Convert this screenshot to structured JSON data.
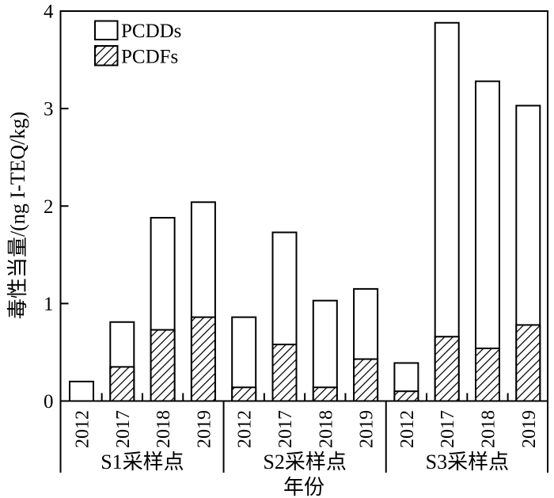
{
  "figure": {
    "background": "#ffffff",
    "ink_color": "#000000"
  },
  "chart_data": {
    "type": "bar",
    "stacked": true,
    "title": "",
    "xlabel": "年份",
    "ylabel": "毒性当量/(ng I-TEQ/kg)",
    "ylim": [
      0,
      4
    ],
    "yticks": [
      0,
      1,
      2,
      3,
      4
    ],
    "ytick_labels": [
      "0",
      "1",
      "2",
      "3",
      "4"
    ],
    "grid": false,
    "legend_position": "top-left",
    "legend": [
      {
        "label": "PCDDs",
        "fill": "white"
      },
      {
        "label": "PCDFs",
        "fill": "hatch"
      }
    ],
    "group_labels": [
      "S1采样点",
      "S2采样点",
      "S3采样点"
    ],
    "categories": [
      "2012",
      "2017",
      "2018",
      "2019",
      "2012",
      "2017",
      "2018",
      "2019",
      "2012",
      "2017",
      "2018",
      "2019"
    ],
    "series": [
      {
        "name": "PCDFs",
        "pattern": "hatch-diagonal",
        "values": [
          0.0,
          0.35,
          0.73,
          0.86,
          0.14,
          0.58,
          0.14,
          0.43,
          0.1,
          0.66,
          0.54,
          0.78
        ]
      },
      {
        "name": "PCDDs",
        "pattern": "white",
        "values": [
          0.2,
          0.46,
          1.15,
          1.18,
          0.72,
          1.15,
          0.89,
          0.72,
          0.29,
          3.22,
          2.74,
          2.25
        ]
      }
    ],
    "stack_totals": [
      0.2,
      0.81,
      1.88,
      2.04,
      0.86,
      1.73,
      1.03,
      1.15,
      0.39,
      3.88,
      3.28,
      3.03
    ]
  }
}
